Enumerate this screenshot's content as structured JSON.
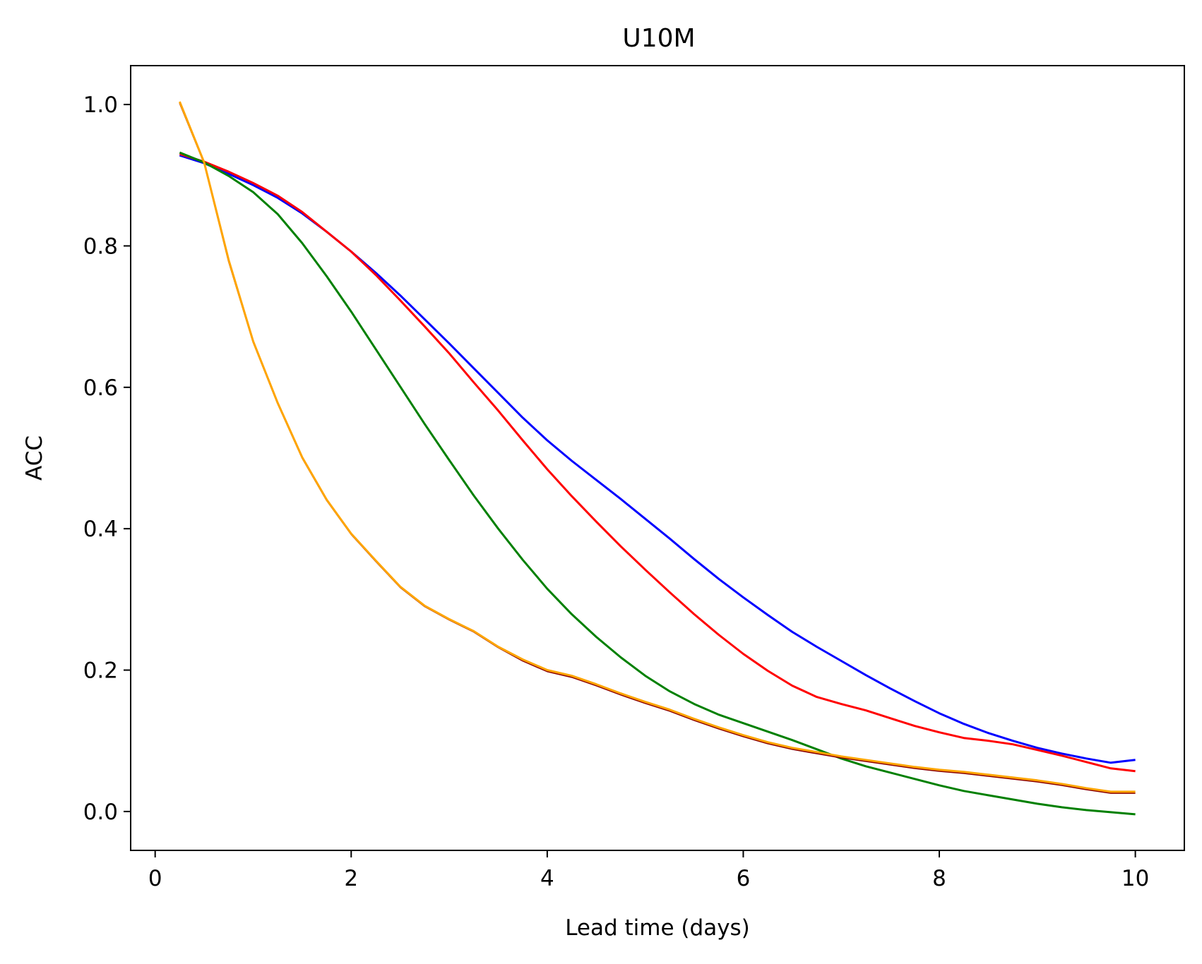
{
  "chart_data": {
    "type": "line",
    "title": "U10M",
    "xlabel": "Lead time (days)",
    "ylabel": "ACC",
    "xlim": [
      -0.25,
      10.5
    ],
    "ylim": [
      -0.055,
      1.055
    ],
    "xticks": [
      0,
      2,
      4,
      6,
      8,
      10
    ],
    "xtick_labels": [
      "0",
      "2",
      "4",
      "6",
      "8",
      "10"
    ],
    "yticks": [
      0.0,
      0.2,
      0.4,
      0.6,
      0.8,
      1.0
    ],
    "ytick_labels": [
      "0.0",
      "0.2",
      "0.4",
      "0.6",
      "0.8",
      "1.0"
    ],
    "grid": false,
    "legend": "none",
    "x": [
      0.25,
      0.5,
      0.75,
      1.0,
      1.25,
      1.5,
      1.75,
      2.0,
      2.25,
      2.5,
      2.75,
      3.0,
      3.25,
      3.5,
      3.75,
      4.0,
      4.25,
      4.5,
      4.75,
      5.0,
      5.25,
      5.5,
      5.75,
      6.0,
      6.25,
      6.5,
      6.75,
      7.0,
      7.25,
      7.5,
      7.75,
      8.0,
      8.25,
      8.5,
      8.75,
      9.0,
      9.25,
      9.5,
      9.75,
      10.0
    ],
    "series": [
      {
        "color": "#0000ff",
        "values": [
          0.928,
          0.917,
          0.902,
          0.886,
          0.868,
          0.846,
          0.82,
          0.792,
          0.762,
          0.73,
          0.696,
          0.662,
          0.627,
          0.592,
          0.557,
          0.525,
          0.496,
          0.469,
          0.442,
          0.414,
          0.386,
          0.357,
          0.329,
          0.303,
          0.278,
          0.254,
          0.233,
          0.213,
          0.193,
          0.174,
          0.156,
          0.139,
          0.124,
          0.111,
          0.1,
          0.09,
          0.082,
          0.075,
          0.069,
          0.073
        ]
      },
      {
        "color": "#ff0000",
        "values": [
          0.93,
          0.919,
          0.905,
          0.889,
          0.871,
          0.848,
          0.82,
          0.792,
          0.759,
          0.723,
          0.686,
          0.648,
          0.607,
          0.567,
          0.525,
          0.484,
          0.446,
          0.41,
          0.375,
          0.342,
          0.31,
          0.279,
          0.25,
          0.223,
          0.199,
          0.178,
          0.162,
          0.152,
          0.143,
          0.132,
          0.121,
          0.112,
          0.104,
          0.1,
          0.095,
          0.087,
          0.079,
          0.07,
          0.061,
          0.057
        ]
      },
      {
        "color": "#008000",
        "values": [
          0.932,
          0.918,
          0.899,
          0.876,
          0.845,
          0.804,
          0.757,
          0.707,
          0.654,
          0.601,
          0.548,
          0.497,
          0.447,
          0.4,
          0.356,
          0.315,
          0.279,
          0.247,
          0.218,
          0.192,
          0.17,
          0.152,
          0.137,
          0.125,
          0.113,
          0.101,
          0.088,
          0.075,
          0.064,
          0.055,
          0.046,
          0.037,
          0.029,
          0.023,
          0.017,
          0.011,
          0.006,
          0.002,
          -0.001,
          -0.004
        ]
      },
      {
        "color": "#8b0000",
        "values": [
          1.002,
          0.917,
          0.778,
          0.664,
          0.577,
          0.5,
          0.44,
          0.392,
          0.354,
          0.317,
          0.29,
          0.271,
          0.254,
          0.232,
          0.213,
          0.198,
          0.19,
          0.178,
          0.165,
          0.153,
          0.142,
          0.129,
          0.117,
          0.106,
          0.096,
          0.088,
          0.082,
          0.076,
          0.071,
          0.066,
          0.061,
          0.057,
          0.054,
          0.05,
          0.046,
          0.042,
          0.037,
          0.031,
          0.026,
          0.026
        ]
      },
      {
        "color": "#ffa500",
        "values": [
          1.004,
          0.918,
          0.78,
          0.665,
          0.578,
          0.501,
          0.441,
          0.393,
          0.355,
          0.318,
          0.291,
          0.272,
          0.255,
          0.233,
          0.215,
          0.2,
          0.192,
          0.18,
          0.167,
          0.155,
          0.144,
          0.131,
          0.119,
          0.108,
          0.098,
          0.09,
          0.084,
          0.078,
          0.073,
          0.068,
          0.063,
          0.059,
          0.056,
          0.052,
          0.048,
          0.044,
          0.039,
          0.033,
          0.028,
          0.028
        ]
      }
    ]
  }
}
